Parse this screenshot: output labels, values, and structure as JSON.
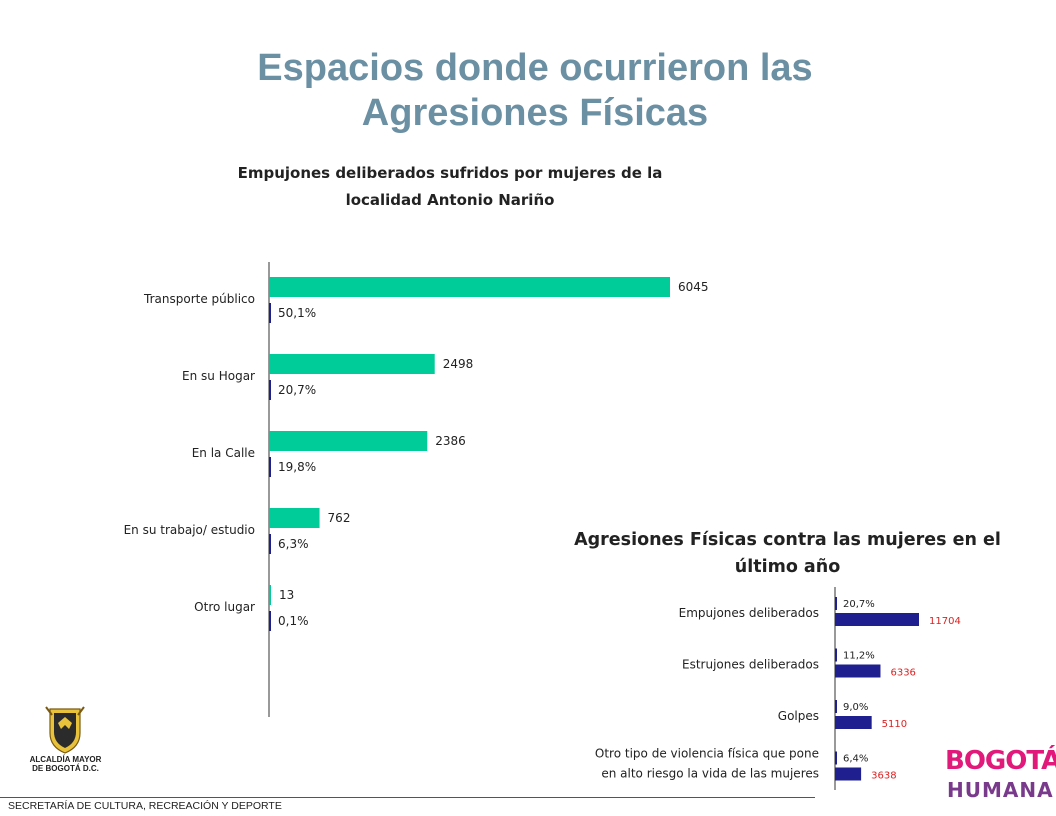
{
  "header": {
    "title_line1": "Espacios donde ocurrieron las",
    "title_line2": "Agresiones Físicas"
  },
  "chart_data": [
    {
      "type": "bar",
      "orientation": "horizontal",
      "title_line1": "Empujones deliberados sufridos por mujeres de la",
      "title_line2": "localidad Antonio Nariño",
      "categories": [
        "Transporte público",
        "En su Hogar",
        "En la Calle",
        "En su trabajo/ estudio",
        "Otro lugar"
      ],
      "series": [
        {
          "values": [
            6045,
            2498,
            2386,
            762,
            13
          ],
          "labels": [
            "6045",
            "2498",
            "2386",
            "762",
            "13"
          ],
          "color": "#00cc99"
        },
        {
          "values": [
            50.1,
            20.7,
            19.8,
            6.3,
            0.1
          ],
          "labels": [
            "50,1%",
            "20,7%",
            "19,8%",
            "6,3%",
            "0,1%"
          ],
          "color": "#1f1f8f"
        }
      ],
      "xlim": [
        0,
        6045
      ],
      "grid": false,
      "legend": "none"
    },
    {
      "type": "bar",
      "orientation": "horizontal",
      "title_line1": "Agresiones Físicas contra las mujeres en el",
      "title_line2": "último año",
      "categories": [
        "Empujones deliberados",
        "Estrujones deliberados",
        "Golpes",
        "Otro tipo de violencia física que pone en alto riesgo la vida de las mujeres"
      ],
      "category_lines": [
        [
          "Empujones deliberados"
        ],
        [
          "Estrujones deliberados"
        ],
        [
          "Golpes"
        ],
        [
          "Otro tipo de violencia física que pone",
          "en alto riesgo la vida de las mujeres"
        ]
      ],
      "series": [
        {
          "values": [
            20.7,
            11.2,
            9.0,
            6.4
          ],
          "labels": [
            "20,7%",
            "11,2%",
            "9,0%",
            "6,4%"
          ],
          "color": "#1f1f8f"
        },
        {
          "values": [
            11704,
            6336,
            5110,
            3638
          ],
          "labels": [
            "11704",
            "6336",
            "5110",
            "3638"
          ],
          "color": "#1f1f8f"
        }
      ],
      "xlim": [
        0,
        11704
      ],
      "grid": false,
      "legend": "none"
    }
  ],
  "footer": {
    "org": "SECRETARÍA DE CULTURA, RECREACIÓN Y DEPORTE",
    "crest_line1": "ALCALDÍA MAYOR",
    "crest_line2": "DE BOGOTÁ D.C.",
    "logo_top": "BOGOTÁ",
    "logo_bottom": "HUMANA"
  },
  "colors": {
    "title": "#6b8fa3",
    "green": "#00cc99",
    "navy": "#1f1f8f",
    "red_label": "#dd2222",
    "brand_pink": "#e0197b",
    "brand_purple": "#7a3a8c"
  }
}
